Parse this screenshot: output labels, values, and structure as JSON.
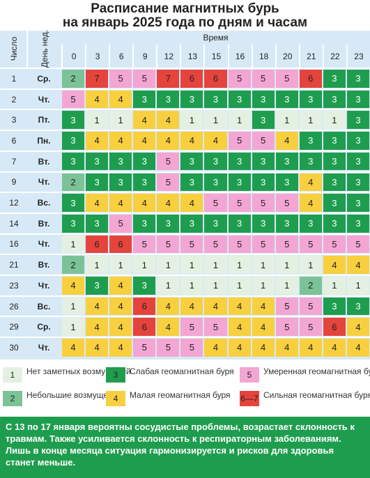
{
  "header": {
    "title_lines": [
      "Расписание магнитных бурь",
      "на январь 2025 года по дням и часам"
    ]
  },
  "table": {
    "day_header": "Число",
    "weekday_header": "День нед.",
    "time_header": "Время",
    "hours": [
      0,
      3,
      6,
      9,
      12,
      13,
      15,
      16,
      18,
      20,
      21,
      22,
      23
    ],
    "rows": [
      {
        "day": 1,
        "weekday": "Ср.",
        "values": [
          2,
          7,
          5,
          5,
          7,
          6,
          6,
          5,
          5,
          5,
          6,
          3,
          3
        ]
      },
      {
        "day": 2,
        "weekday": "Чт.",
        "values": [
          5,
          4,
          4,
          3,
          3,
          3,
          3,
          3,
          3,
          3,
          3,
          3,
          3
        ]
      },
      {
        "day": 3,
        "weekday": "Пт.",
        "values": [
          3,
          1,
          1,
          4,
          4,
          1,
          1,
          1,
          3,
          1,
          1,
          1,
          3
        ]
      },
      {
        "day": 6,
        "weekday": "Пн.",
        "values": [
          3,
          4,
          4,
          4,
          4,
          4,
          4,
          5,
          5,
          4,
          3,
          3,
          3
        ]
      },
      {
        "day": 7,
        "weekday": "Вт.",
        "values": [
          3,
          3,
          3,
          3,
          5,
          3,
          3,
          3,
          3,
          3,
          3,
          3,
          3
        ]
      },
      {
        "day": 9,
        "weekday": "Чт.",
        "values": [
          2,
          3,
          3,
          3,
          5,
          3,
          3,
          3,
          3,
          3,
          4,
          3,
          3
        ]
      },
      {
        "day": 12,
        "weekday": "Вс.",
        "values": [
          3,
          4,
          4,
          4,
          4,
          4,
          5,
          5,
          5,
          5,
          4,
          3,
          3
        ]
      },
      {
        "day": 14,
        "weekday": "Вт.",
        "values": [
          3,
          3,
          5,
          3,
          3,
          3,
          3,
          3,
          3,
          3,
          3,
          3,
          3
        ]
      },
      {
        "day": 16,
        "weekday": "Чт.",
        "values": [
          1,
          6,
          6,
          5,
          5,
          5,
          5,
          5,
          5,
          5,
          5,
          5,
          5
        ]
      },
      {
        "day": 21,
        "weekday": "Вт.",
        "values": [
          2,
          1,
          1,
          1,
          1,
          1,
          1,
          1,
          1,
          1,
          1,
          4,
          4
        ]
      },
      {
        "day": 23,
        "weekday": "Чт.",
        "values": [
          4,
          3,
          4,
          3,
          1,
          1,
          1,
          1,
          1,
          1,
          2,
          1,
          1
        ]
      },
      {
        "day": 26,
        "weekday": "Вс.",
        "values": [
          1,
          4,
          4,
          6,
          4,
          4,
          4,
          4,
          4,
          5,
          5,
          3,
          3
        ]
      },
      {
        "day": 29,
        "weekday": "Ср.",
        "values": [
          1,
          4,
          4,
          6,
          4,
          5,
          5,
          4,
          4,
          5,
          5,
          6,
          4
        ]
      },
      {
        "day": 30,
        "weekday": "Чт.",
        "values": [
          4,
          4,
          4,
          5,
          5,
          5,
          4,
          4,
          4,
          4,
          4,
          4,
          4
        ]
      }
    ]
  },
  "legend": [
    {
      "label": "1",
      "text": "Нет заметных возмущений",
      "color": "#e4f1e2"
    },
    {
      "label": "3",
      "text": "Слабая геомагнитная буря",
      "color": "#1f9d4f"
    },
    {
      "label": "5",
      "text": "Умеренная геомагнитная буря",
      "color": "#f3a6d3"
    },
    {
      "label": "2",
      "text": "Небольшие возмущения",
      "color": "#7cc297"
    },
    {
      "label": "4",
      "text": "Малая геомагнитная буря",
      "color": "#f8cf3e"
    },
    {
      "label": "6—7",
      "text": "Сильная геомагнитная буря",
      "color": "#e5443d"
    }
  ],
  "note": "С 13 по 17 января вероятны сосудистые проблемы, возрастает склонность к травмам. Также усиливается склонность к респираторным заболеваниям. Лишь в конце месяца ситуация гармонизируется и рисков для здоровья станет меньше."
}
